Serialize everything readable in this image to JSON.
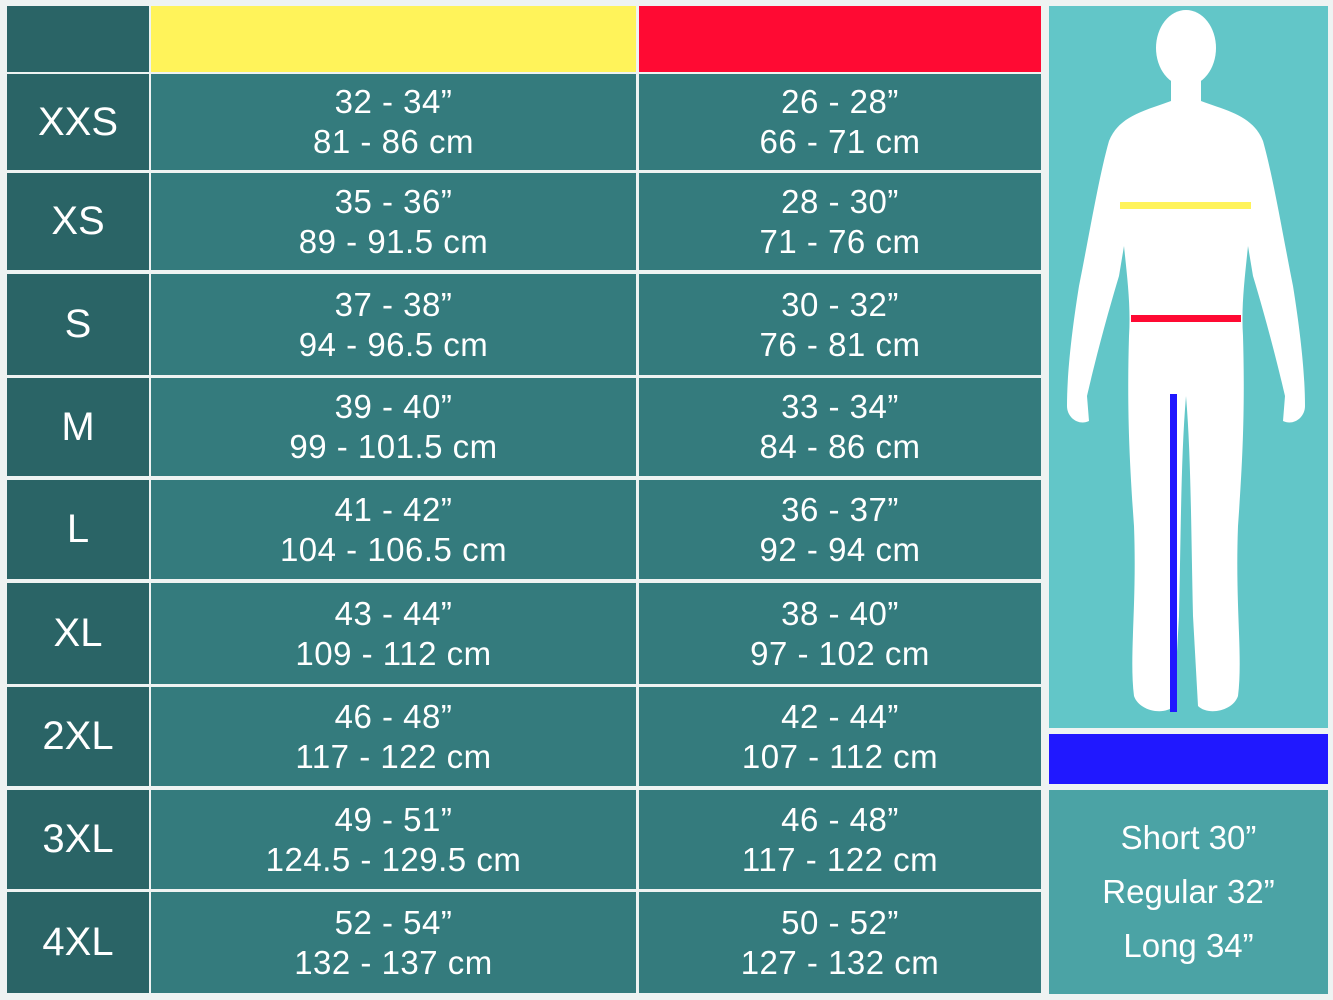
{
  "header": {
    "corner_color": "#2a6466",
    "chest_color": "#fff35a",
    "waist_color": "#ff0a33",
    "inseam_color": "#2018ff"
  },
  "rows": [
    {
      "size": "XXS",
      "chest_in": "32 - 34”",
      "chest_cm": "81 - 86 cm",
      "waist_in": "26 - 28”",
      "waist_cm": "66 - 71 cm"
    },
    {
      "size": "XS",
      "chest_in": "35 - 36”",
      "chest_cm": "89 - 91.5 cm",
      "waist_in": "28 - 30”",
      "waist_cm": "71 - 76 cm"
    },
    {
      "size": "S",
      "chest_in": "37 - 38”",
      "chest_cm": "94 - 96.5 cm",
      "waist_in": "30 - 32”",
      "waist_cm": "76 - 81 cm"
    },
    {
      "size": "M",
      "chest_in": "39 - 40”",
      "chest_cm": "99 - 101.5 cm",
      "waist_in": "33 - 34”",
      "waist_cm": "84 - 86 cm"
    },
    {
      "size": "L",
      "chest_in": "41 - 42”",
      "chest_cm": "104 - 106.5 cm",
      "waist_in": "36 - 37”",
      "waist_cm": "92 - 94 cm"
    },
    {
      "size": "XL",
      "chest_in": "43 - 44”",
      "chest_cm": "109 - 112 cm",
      "waist_in": "38 - 40”",
      "waist_cm": "97 - 102 cm"
    },
    {
      "size": "2XL",
      "chest_in": "46 - 48”",
      "chest_cm": "117 - 122 cm",
      "waist_in": "42 - 44”",
      "waist_cm": "107 - 112 cm"
    },
    {
      "size": "3XL",
      "chest_in": "49 - 51”",
      "chest_cm": "124.5 - 129.5 cm",
      "waist_in": "46 - 48”",
      "waist_cm": "117 - 122 cm"
    },
    {
      "size": "4XL",
      "chest_in": "52 - 54”",
      "chest_cm": "132 - 137 cm",
      "waist_in": "50 - 52”",
      "waist_cm": "127 - 132 cm"
    }
  ],
  "inseam": {
    "lengths": [
      "Short 30”",
      "Regular 32”",
      "Long 34”"
    ]
  },
  "figure": {
    "background": "#62c6c8",
    "icon": "human-body-silhouette-icon"
  }
}
